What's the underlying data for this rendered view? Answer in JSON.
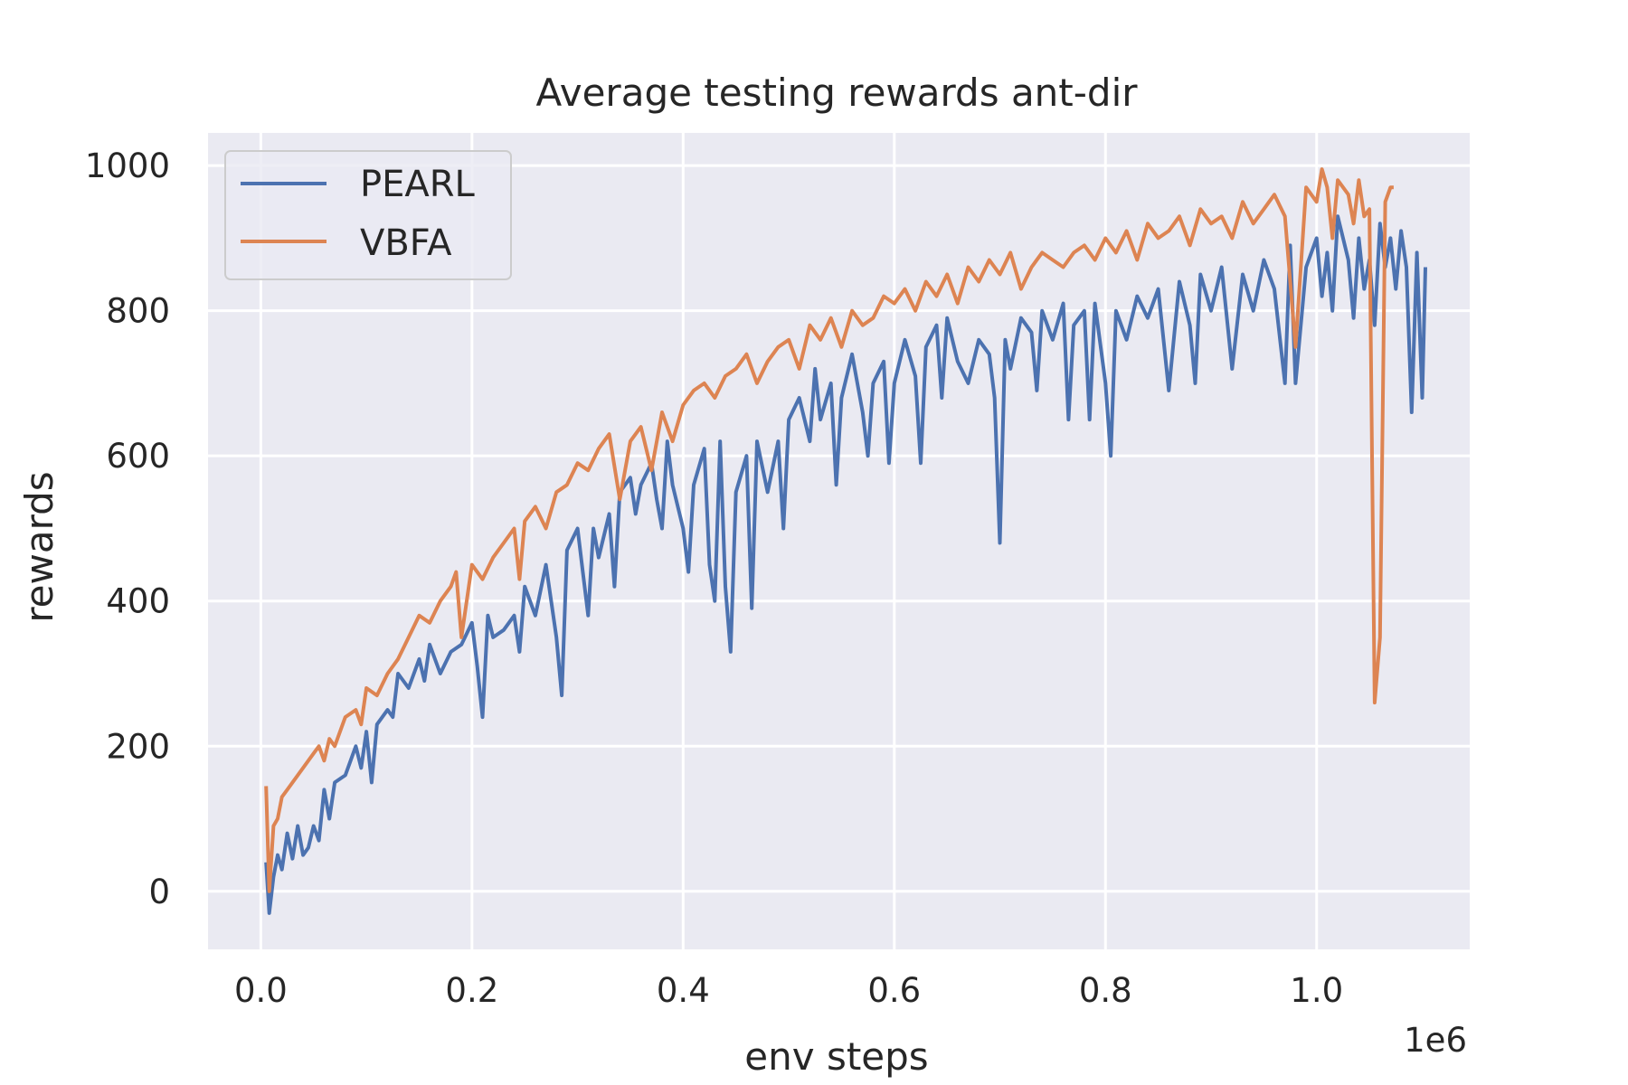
{
  "chart_data": {
    "type": "line",
    "title": "Average testing rewards ant-dir",
    "xlabel": "env steps",
    "ylabel": "rewards",
    "x_offset_label": "1e6",
    "xlim": [
      -0.05,
      1.145
    ],
    "ylim": [
      -80,
      1045
    ],
    "xticks": [
      0.0,
      0.2,
      0.4,
      0.6,
      0.8,
      1.0
    ],
    "xtick_labels": [
      "0.0",
      "0.2",
      "0.4",
      "0.6",
      "0.8",
      "1.0"
    ],
    "yticks": [
      0,
      200,
      400,
      600,
      800,
      1000
    ],
    "ytick_labels": [
      "0",
      "200",
      "400",
      "600",
      "800",
      "1000"
    ],
    "grid": true,
    "legend_position": "top-left",
    "series": [
      {
        "name": "PEARL",
        "color": "#4c72b0",
        "points": [
          [
            0.005,
            40
          ],
          [
            0.008,
            -30
          ],
          [
            0.012,
            20
          ],
          [
            0.016,
            50
          ],
          [
            0.02,
            30
          ],
          [
            0.025,
            80
          ],
          [
            0.03,
            45
          ],
          [
            0.035,
            90
          ],
          [
            0.04,
            50
          ],
          [
            0.045,
            60
          ],
          [
            0.05,
            90
          ],
          [
            0.055,
            70
          ],
          [
            0.06,
            140
          ],
          [
            0.065,
            100
          ],
          [
            0.07,
            150
          ],
          [
            0.08,
            160
          ],
          [
            0.09,
            200
          ],
          [
            0.095,
            170
          ],
          [
            0.1,
            220
          ],
          [
            0.105,
            150
          ],
          [
            0.11,
            230
          ],
          [
            0.12,
            250
          ],
          [
            0.125,
            240
          ],
          [
            0.13,
            300
          ],
          [
            0.14,
            280
          ],
          [
            0.15,
            320
          ],
          [
            0.155,
            290
          ],
          [
            0.16,
            340
          ],
          [
            0.17,
            300
          ],
          [
            0.18,
            330
          ],
          [
            0.19,
            340
          ],
          [
            0.2,
            370
          ],
          [
            0.205,
            310
          ],
          [
            0.21,
            240
          ],
          [
            0.215,
            380
          ],
          [
            0.22,
            350
          ],
          [
            0.23,
            360
          ],
          [
            0.24,
            380
          ],
          [
            0.245,
            330
          ],
          [
            0.25,
            420
          ],
          [
            0.26,
            380
          ],
          [
            0.27,
            450
          ],
          [
            0.275,
            400
          ],
          [
            0.28,
            350
          ],
          [
            0.285,
            270
          ],
          [
            0.29,
            470
          ],
          [
            0.3,
            500
          ],
          [
            0.305,
            440
          ],
          [
            0.31,
            380
          ],
          [
            0.315,
            500
          ],
          [
            0.32,
            460
          ],
          [
            0.33,
            520
          ],
          [
            0.335,
            420
          ],
          [
            0.34,
            550
          ],
          [
            0.35,
            570
          ],
          [
            0.355,
            520
          ],
          [
            0.36,
            560
          ],
          [
            0.37,
            590
          ],
          [
            0.375,
            540
          ],
          [
            0.38,
            500
          ],
          [
            0.385,
            620
          ],
          [
            0.39,
            560
          ],
          [
            0.4,
            500
          ],
          [
            0.405,
            440
          ],
          [
            0.41,
            560
          ],
          [
            0.42,
            610
          ],
          [
            0.425,
            450
          ],
          [
            0.43,
            400
          ],
          [
            0.435,
            620
          ],
          [
            0.44,
            420
          ],
          [
            0.445,
            330
          ],
          [
            0.45,
            550
          ],
          [
            0.46,
            600
          ],
          [
            0.465,
            390
          ],
          [
            0.47,
            620
          ],
          [
            0.48,
            550
          ],
          [
            0.49,
            620
          ],
          [
            0.495,
            500
          ],
          [
            0.5,
            650
          ],
          [
            0.51,
            680
          ],
          [
            0.52,
            620
          ],
          [
            0.525,
            720
          ],
          [
            0.53,
            650
          ],
          [
            0.54,
            700
          ],
          [
            0.545,
            560
          ],
          [
            0.55,
            680
          ],
          [
            0.56,
            740
          ],
          [
            0.57,
            660
          ],
          [
            0.575,
            600
          ],
          [
            0.58,
            700
          ],
          [
            0.59,
            730
          ],
          [
            0.595,
            590
          ],
          [
            0.6,
            700
          ],
          [
            0.61,
            760
          ],
          [
            0.62,
            710
          ],
          [
            0.625,
            590
          ],
          [
            0.63,
            750
          ],
          [
            0.64,
            780
          ],
          [
            0.645,
            680
          ],
          [
            0.65,
            790
          ],
          [
            0.66,
            730
          ],
          [
            0.67,
            700
          ],
          [
            0.68,
            760
          ],
          [
            0.69,
            740
          ],
          [
            0.695,
            680
          ],
          [
            0.7,
            480
          ],
          [
            0.705,
            760
          ],
          [
            0.71,
            720
          ],
          [
            0.72,
            790
          ],
          [
            0.73,
            770
          ],
          [
            0.735,
            690
          ],
          [
            0.74,
            800
          ],
          [
            0.75,
            760
          ],
          [
            0.76,
            810
          ],
          [
            0.765,
            650
          ],
          [
            0.77,
            780
          ],
          [
            0.78,
            800
          ],
          [
            0.785,
            650
          ],
          [
            0.79,
            810
          ],
          [
            0.8,
            700
          ],
          [
            0.805,
            600
          ],
          [
            0.81,
            800
          ],
          [
            0.82,
            760
          ],
          [
            0.83,
            820
          ],
          [
            0.84,
            790
          ],
          [
            0.85,
            830
          ],
          [
            0.86,
            690
          ],
          [
            0.87,
            840
          ],
          [
            0.88,
            780
          ],
          [
            0.885,
            700
          ],
          [
            0.89,
            850
          ],
          [
            0.9,
            800
          ],
          [
            0.91,
            860
          ],
          [
            0.92,
            720
          ],
          [
            0.93,
            850
          ],
          [
            0.94,
            800
          ],
          [
            0.95,
            870
          ],
          [
            0.96,
            830
          ],
          [
            0.97,
            700
          ],
          [
            0.975,
            890
          ],
          [
            0.98,
            700
          ],
          [
            0.99,
            860
          ],
          [
            1.0,
            900
          ],
          [
            1.005,
            820
          ],
          [
            1.01,
            880
          ],
          [
            1.015,
            800
          ],
          [
            1.02,
            930
          ],
          [
            1.03,
            870
          ],
          [
            1.035,
            790
          ],
          [
            1.04,
            900
          ],
          [
            1.045,
            830
          ],
          [
            1.05,
            870
          ],
          [
            1.055,
            780
          ],
          [
            1.06,
            920
          ],
          [
            1.065,
            860
          ],
          [
            1.07,
            900
          ],
          [
            1.075,
            830
          ],
          [
            1.08,
            910
          ],
          [
            1.085,
            860
          ],
          [
            1.09,
            660
          ],
          [
            1.095,
            880
          ],
          [
            1.1,
            680
          ],
          [
            1.103,
            860
          ]
        ]
      },
      {
        "name": "VBFA",
        "color": "#dd8452",
        "points": [
          [
            0.005,
            145
          ],
          [
            0.008,
            0
          ],
          [
            0.012,
            90
          ],
          [
            0.016,
            100
          ],
          [
            0.02,
            130
          ],
          [
            0.025,
            140
          ],
          [
            0.03,
            150
          ],
          [
            0.035,
            160
          ],
          [
            0.04,
            170
          ],
          [
            0.045,
            180
          ],
          [
            0.05,
            190
          ],
          [
            0.055,
            200
          ],
          [
            0.06,
            180
          ],
          [
            0.065,
            210
          ],
          [
            0.07,
            200
          ],
          [
            0.08,
            240
          ],
          [
            0.09,
            250
          ],
          [
            0.095,
            230
          ],
          [
            0.1,
            280
          ],
          [
            0.11,
            270
          ],
          [
            0.12,
            300
          ],
          [
            0.13,
            320
          ],
          [
            0.14,
            350
          ],
          [
            0.15,
            380
          ],
          [
            0.16,
            370
          ],
          [
            0.17,
            400
          ],
          [
            0.18,
            420
          ],
          [
            0.185,
            440
          ],
          [
            0.19,
            350
          ],
          [
            0.2,
            450
          ],
          [
            0.21,
            430
          ],
          [
            0.22,
            460
          ],
          [
            0.23,
            480
          ],
          [
            0.24,
            500
          ],
          [
            0.245,
            430
          ],
          [
            0.25,
            510
          ],
          [
            0.26,
            530
          ],
          [
            0.27,
            500
          ],
          [
            0.28,
            550
          ],
          [
            0.29,
            560
          ],
          [
            0.3,
            590
          ],
          [
            0.31,
            580
          ],
          [
            0.32,
            610
          ],
          [
            0.33,
            630
          ],
          [
            0.34,
            540
          ],
          [
            0.35,
            620
          ],
          [
            0.36,
            640
          ],
          [
            0.37,
            580
          ],
          [
            0.38,
            660
          ],
          [
            0.39,
            620
          ],
          [
            0.4,
            670
          ],
          [
            0.41,
            690
          ],
          [
            0.42,
            700
          ],
          [
            0.43,
            680
          ],
          [
            0.44,
            710
          ],
          [
            0.45,
            720
          ],
          [
            0.46,
            740
          ],
          [
            0.47,
            700
          ],
          [
            0.48,
            730
          ],
          [
            0.49,
            750
          ],
          [
            0.5,
            760
          ],
          [
            0.51,
            720
          ],
          [
            0.52,
            780
          ],
          [
            0.53,
            760
          ],
          [
            0.54,
            790
          ],
          [
            0.55,
            750
          ],
          [
            0.56,
            800
          ],
          [
            0.57,
            780
          ],
          [
            0.58,
            790
          ],
          [
            0.59,
            820
          ],
          [
            0.6,
            810
          ],
          [
            0.61,
            830
          ],
          [
            0.62,
            800
          ],
          [
            0.63,
            840
          ],
          [
            0.64,
            820
          ],
          [
            0.65,
            850
          ],
          [
            0.66,
            810
          ],
          [
            0.67,
            860
          ],
          [
            0.68,
            840
          ],
          [
            0.69,
            870
          ],
          [
            0.7,
            850
          ],
          [
            0.71,
            880
          ],
          [
            0.72,
            830
          ],
          [
            0.73,
            860
          ],
          [
            0.74,
            880
          ],
          [
            0.75,
            870
          ],
          [
            0.76,
            860
          ],
          [
            0.77,
            880
          ],
          [
            0.78,
            890
          ],
          [
            0.79,
            870
          ],
          [
            0.8,
            900
          ],
          [
            0.81,
            880
          ],
          [
            0.82,
            910
          ],
          [
            0.83,
            870
          ],
          [
            0.84,
            920
          ],
          [
            0.85,
            900
          ],
          [
            0.86,
            910
          ],
          [
            0.87,
            930
          ],
          [
            0.88,
            890
          ],
          [
            0.89,
            940
          ],
          [
            0.9,
            920
          ],
          [
            0.91,
            930
          ],
          [
            0.92,
            900
          ],
          [
            0.93,
            950
          ],
          [
            0.94,
            920
          ],
          [
            0.95,
            940
          ],
          [
            0.96,
            960
          ],
          [
            0.97,
            930
          ],
          [
            0.98,
            750
          ],
          [
            0.99,
            970
          ],
          [
            1.0,
            950
          ],
          [
            1.005,
            995
          ],
          [
            1.01,
            970
          ],
          [
            1.015,
            900
          ],
          [
            1.02,
            980
          ],
          [
            1.03,
            960
          ],
          [
            1.035,
            920
          ],
          [
            1.04,
            980
          ],
          [
            1.045,
            930
          ],
          [
            1.05,
            940
          ],
          [
            1.055,
            260
          ],
          [
            1.06,
            350
          ],
          [
            1.065,
            950
          ],
          [
            1.07,
            970
          ],
          [
            1.073,
            970
          ]
        ]
      }
    ]
  }
}
